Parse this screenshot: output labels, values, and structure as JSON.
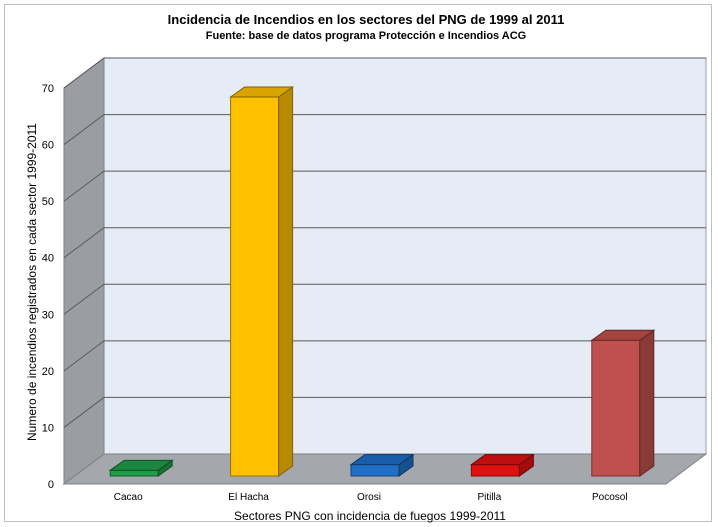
{
  "chart_data": {
    "type": "bar",
    "title": "Incidencia de Incendios en los sectores del PNG de 1999 al 2011",
    "subtitle": "Fuente: base de datos programa Protección e Incendios ACG",
    "xlabel": "Sectores PNG con incidencia de fuegos 1999-2011",
    "ylabel": "Numero de incendios registrados en cada sector 1999-2011",
    "ylim": [
      0,
      70
    ],
    "yticks": [
      0,
      10,
      20,
      30,
      40,
      50,
      60,
      70
    ],
    "categories": [
      "Cacao",
      "El Hacha",
      "Orosi",
      "Pitilla",
      "Pocosol"
    ],
    "values": [
      1,
      67,
      2,
      2,
      24
    ],
    "colors": [
      "#1e9e4a",
      "#ffc000",
      "#1f6fc9",
      "#e01010",
      "#c0504d"
    ],
    "grid": true,
    "legend": "none",
    "style": "3d-column"
  }
}
